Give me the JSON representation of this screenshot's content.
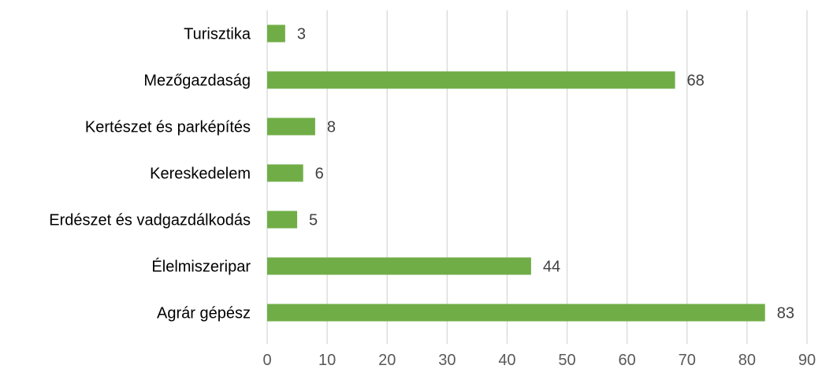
{
  "chart_data": {
    "type": "bar",
    "orientation": "horizontal",
    "title": "",
    "xlabel": "",
    "ylabel": "",
    "categories": [
      "Turisztika",
      "Mezőgazdaság",
      "Kertészet és parképítés",
      "Kereskedelem",
      "Erdészet és vadgazdálkodás",
      "Élelmiszeripar",
      "Agrár gépész"
    ],
    "values": [
      3,
      68,
      8,
      6,
      5,
      44,
      83
    ],
    "xlim": [
      0,
      90
    ],
    "xticks": [
      0,
      10,
      20,
      30,
      40,
      50,
      60,
      70,
      80,
      90
    ],
    "grid": "vertical",
    "legend": "none",
    "data_labels": true,
    "colors": {
      "bar": "#70AD47",
      "grid": "#D9D9D9",
      "category_text": "#000000",
      "tick_text": "#595959",
      "data_label_text": "#404040"
    }
  }
}
